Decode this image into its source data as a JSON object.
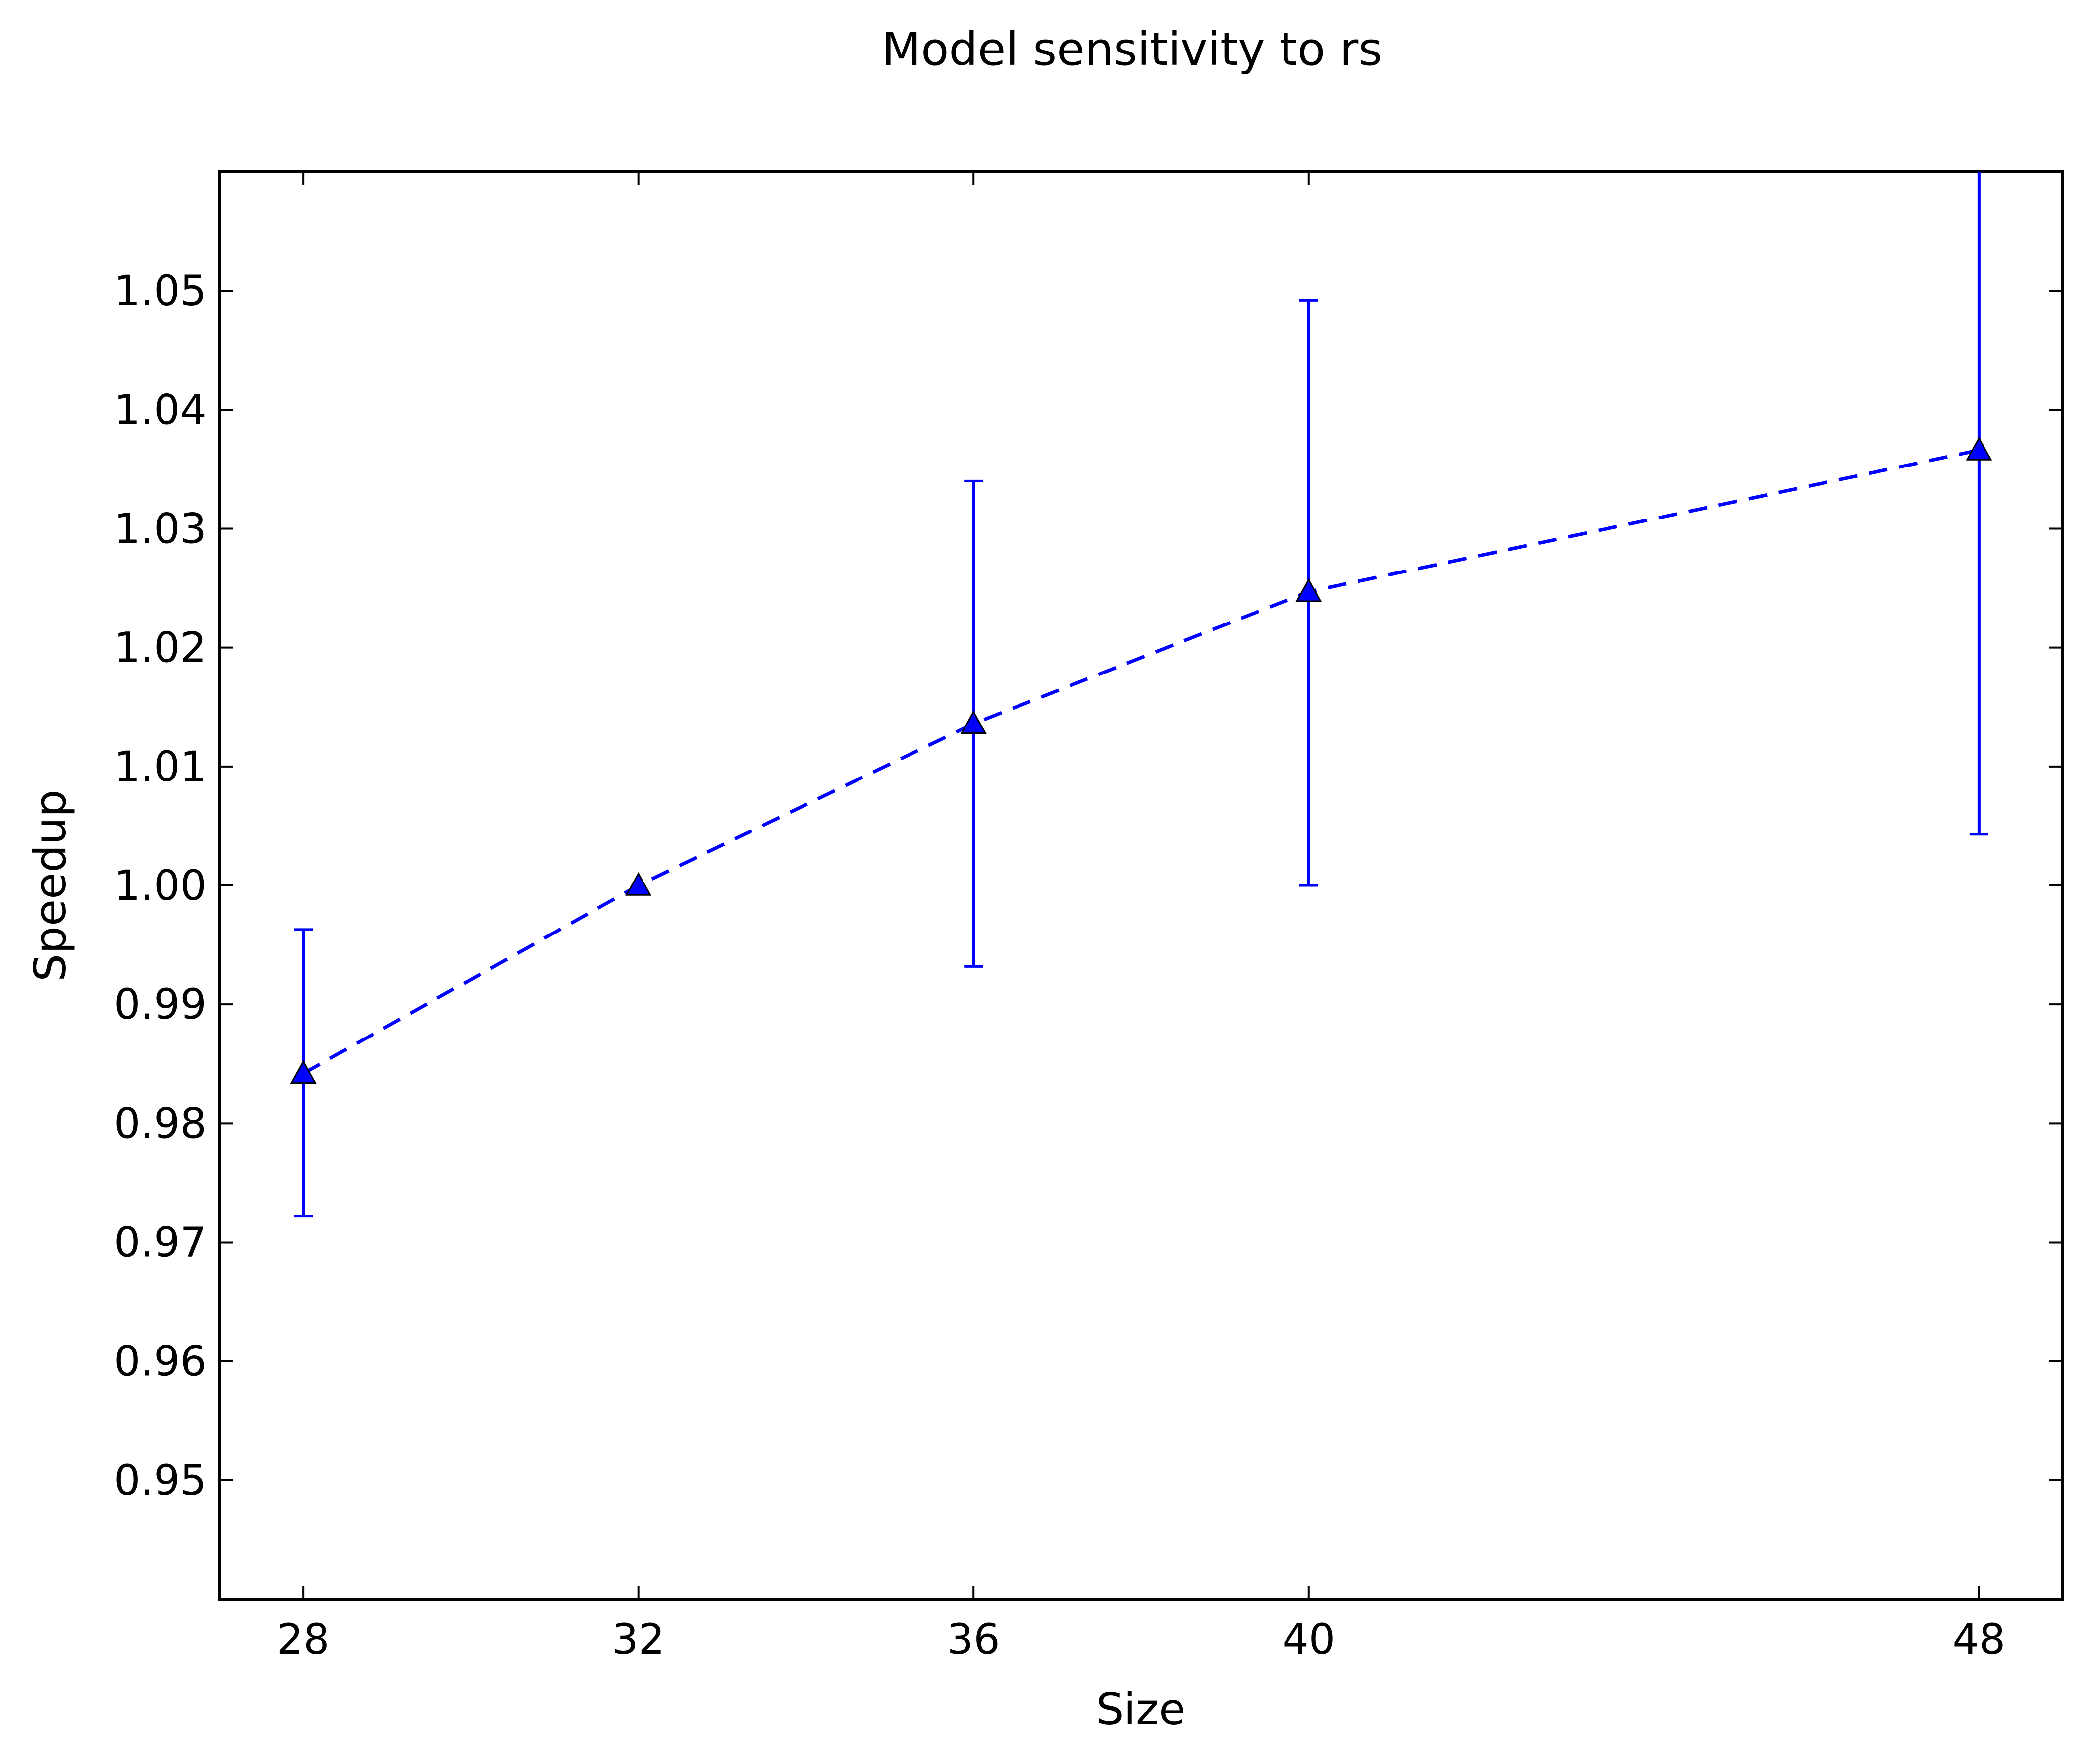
{
  "chart_data": {
    "type": "line",
    "title": "Model sensitivity to rs",
    "xlabel": "Size",
    "ylabel": "Speedup",
    "x_ticks": [
      "28",
      "32",
      "36",
      "40",
      "48"
    ],
    "y_ticks": [
      "0.95",
      "0.96",
      "0.97",
      "0.98",
      "0.99",
      "1.00",
      "1.01",
      "1.02",
      "1.03",
      "1.04",
      "1.05"
    ],
    "xlim": [
      27,
      49
    ],
    "ylim": [
      0.94,
      1.06
    ],
    "grid": false,
    "legend": "none",
    "series": [
      {
        "x": [
          28,
          32,
          36,
          40,
          48
        ],
        "y": [
          0.9842,
          1.0,
          1.0136,
          1.0247,
          1.0366
        ],
        "yerr_low": [
          0.9722,
          1.0,
          0.9932,
          1.0,
          1.0043
        ],
        "yerr_high": [
          0.9963,
          1.0,
          1.034,
          1.0492,
          1.06
        ],
        "color": "#0000ff",
        "line_style": "dashed",
        "marker": "triangle-up"
      }
    ]
  }
}
